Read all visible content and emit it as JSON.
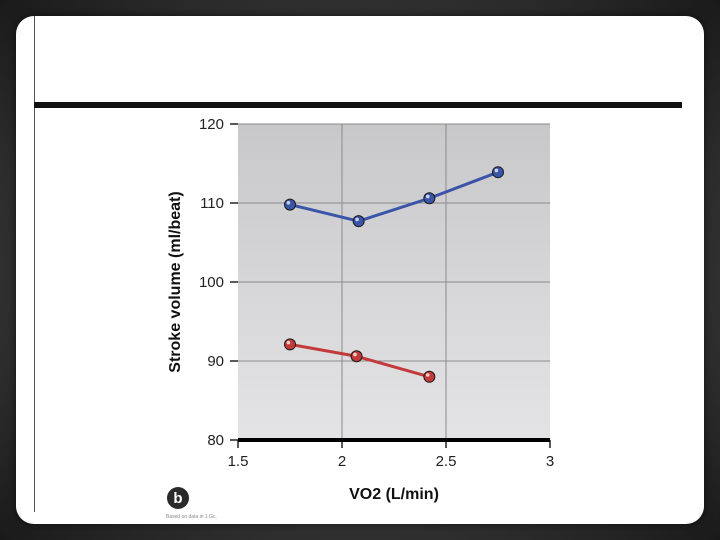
{
  "chart_data": {
    "type": "line",
    "xlabel": "VO2 (L/min)",
    "ylabel": "Stroke volume (ml/beat)",
    "xlim": [
      1.5,
      3
    ],
    "ylim": [
      80,
      120
    ],
    "xticks": [
      "1.5",
      "2",
      "2.5",
      "3"
    ],
    "yticks": [
      "80",
      "90",
      "100",
      "110",
      "120"
    ],
    "grid": true,
    "series": [
      {
        "color": "#3a55a8",
        "x": [
          1.75,
          2.08,
          2.42,
          2.75
        ],
        "y": [
          109.8,
          107.7,
          110.6,
          113.9
        ]
      },
      {
        "color": "#c23a3a",
        "x": [
          1.75,
          2.07,
          2.42
        ],
        "y": [
          92.1,
          90.6,
          88.0
        ]
      }
    ]
  },
  "panel": {
    "badge": "b",
    "credit": "Based on data in 1 Gc."
  }
}
